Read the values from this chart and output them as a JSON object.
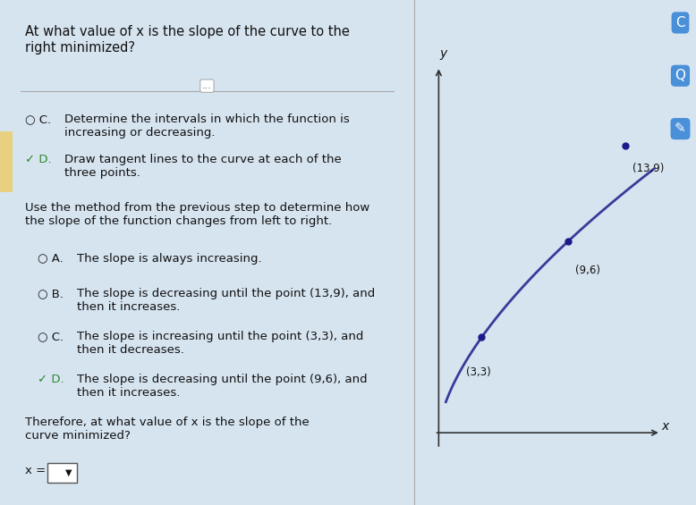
{
  "bg_color": "#d6e4f0",
  "left_panel_bg": "#ffffff",
  "right_panel_bg": "#e8eef4",
  "title_text": "At what value of x is the slope of the curve to the\nright minimized?",
  "divider_text": "...",
  "option_C_text": "C.  Determine the intervals in which the function is\n      increasing or decreasing.",
  "option_D_text": "D.  Draw tangent lines to the curve at each of the\n      three points.",
  "question2_text": "Use the method from the previous step to determine how\nthe slope of the function changes from left to right.",
  "optA_text": "A.  The slope is always increasing.",
  "optB_text": "B.  The slope is decreasing until the point (13,9), and\n      then it increases.",
  "optC_text": "C.  The slope is increasing until the point (3,3), and\n      then it decreases.",
  "optD_text": "D.  The slope is decreasing until the point (9,6), and\n      then it increases.",
  "final_q_text": "Therefore, at what value of x is the slope of the\ncurve minimized?",
  "x_eq_text": "x =",
  "curve_color": "#3a3a9a",
  "point_color": "#1a1a8a",
  "points": [
    [
      3,
      3
    ],
    [
      9,
      6
    ],
    [
      13,
      9
    ]
  ],
  "point_labels": [
    "(3,3)",
    "(9,6)",
    "(13,9)"
  ],
  "axis_color": "#333333",
  "text_color": "#111111",
  "checked_color": "#2d8a2d",
  "unchecked_color": "#888888",
  "yellow_tab_color": "#e8d080",
  "title_fontsize": 10.5,
  "body_fontsize": 9.5,
  "small_fontsize": 8.5
}
